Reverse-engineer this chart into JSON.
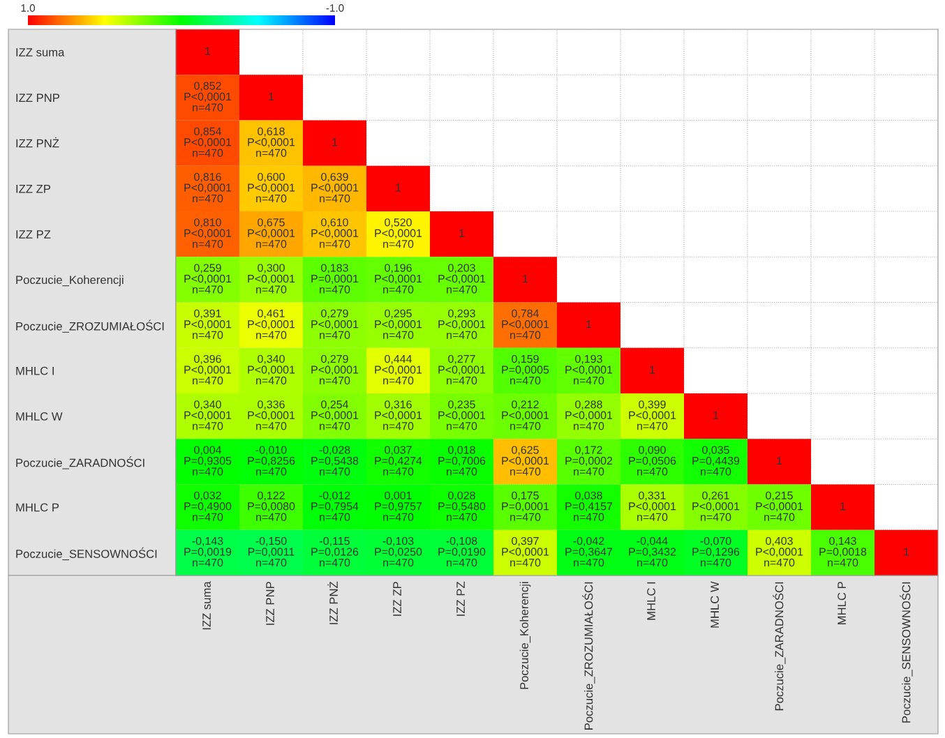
{
  "chart_data": {
    "type": "heatmap",
    "grid": true,
    "categories": [
      "IZZ suma",
      "IZZ PNP",
      "IZZ PNŻ",
      "IZZ ZP",
      "IZZ PZ",
      "Poczucie_Koherencji",
      "Poczucie_ZROZUMIAŁOŚCI",
      "MHLC I",
      "MHLC W",
      "Poczucie_ZARADNOŚCI",
      "MHLC P",
      "Poczucie_SENSOWNOŚCI"
    ],
    "y_categories": [
      "IZZ suma",
      "IZZ PNP",
      "IZZ PNŻ",
      "IZZ ZP",
      "IZZ PZ",
      "Poczucie_Koherencji",
      "Poczucie_ZROZUMIAŁOŚCI",
      "MHLC I",
      "MHLC W",
      "Poczucie_ZARADNOŚCI",
      "MHLC P",
      "Poczucie_SENSOWNOŚCI"
    ],
    "clim": [
      1.0,
      -1.0
    ],
    "cticks": [
      {
        "value": 1.0,
        "label": "1.0"
      },
      {
        "value": -1.0,
        "label": "-1.0"
      }
    ],
    "cells": [
      [
        1,
        null,
        null,
        null,
        null,
        null,
        null,
        null,
        null,
        null,
        null,
        null
      ],
      [
        0.852,
        1,
        null,
        null,
        null,
        null,
        null,
        null,
        null,
        null,
        null,
        null
      ],
      [
        0.854,
        0.618,
        1,
        null,
        null,
        null,
        null,
        null,
        null,
        null,
        null,
        null
      ],
      [
        0.816,
        0.6,
        0.639,
        1,
        null,
        null,
        null,
        null,
        null,
        null,
        null,
        null
      ],
      [
        0.81,
        0.675,
        0.61,
        0.52,
        1,
        null,
        null,
        null,
        null,
        null,
        null,
        null
      ],
      [
        0.259,
        0.3,
        0.183,
        0.196,
        0.203,
        1,
        null,
        null,
        null,
        null,
        null,
        null
      ],
      [
        0.391,
        0.461,
        0.279,
        0.295,
        0.293,
        0.784,
        1,
        null,
        null,
        null,
        null,
        null
      ],
      [
        0.396,
        0.34,
        0.279,
        0.444,
        0.277,
        0.159,
        0.193,
        1,
        null,
        null,
        null,
        null
      ],
      [
        0.34,
        0.336,
        0.254,
        0.316,
        0.235,
        0.212,
        0.288,
        0.399,
        1,
        null,
        null,
        null
      ],
      [
        0.004,
        -0.01,
        -0.028,
        0.037,
        0.018,
        0.625,
        0.172,
        0.09,
        0.035,
        1,
        null,
        null
      ],
      [
        0.032,
        0.122,
        -0.012,
        0.001,
        0.028,
        0.175,
        0.038,
        0.331,
        0.261,
        0.215,
        1,
        null
      ],
      [
        -0.143,
        -0.15,
        -0.115,
        -0.103,
        -0.108,
        0.397,
        -0.042,
        -0.044,
        -0.07,
        0.403,
        0.143,
        1
      ]
    ],
    "cell_labels": [
      [
        "1",
        null,
        null,
        null,
        null,
        null,
        null,
        null,
        null,
        null,
        null,
        null
      ],
      [
        "0,852\nP<0,0001\nn=470",
        "1",
        null,
        null,
        null,
        null,
        null,
        null,
        null,
        null,
        null,
        null
      ],
      [
        "0,854\nP<0,0001\nn=470",
        "0,618\nP<0,0001\nn=470",
        "1",
        null,
        null,
        null,
        null,
        null,
        null,
        null,
        null,
        null
      ],
      [
        "0,816\nP<0,0001\nn=470",
        "0,600\nP<0,0001\nn=470",
        "0,639\nP<0,0001\nn=470",
        "1",
        null,
        null,
        null,
        null,
        null,
        null,
        null,
        null
      ],
      [
        "0,810\nP<0,0001\nn=470",
        "0,675\nP<0,0001\nn=470",
        "0,610\nP<0,0001\nn=470",
        "0,520\nP<0,0001\nn=470",
        "1",
        null,
        null,
        null,
        null,
        null,
        null,
        null
      ],
      [
        "0,259\nP<0,0001\nn=470",
        "0,300\nP<0,0001\nn=470",
        "0,183\nP=0,0001\nn=470",
        "0,196\nP<0,0001\nn=470",
        "0,203\nP<0,0001\nn=470",
        "1",
        null,
        null,
        null,
        null,
        null,
        null
      ],
      [
        "0,391\nP<0,0001\nn=470",
        "0,461\nP<0,0001\nn=470",
        "0,279\nP<0,0001\nn=470",
        "0,295\nP<0,0001\nn=470",
        "0,293\nP<0,0001\nn=470",
        "0,784\nP<0,0001\nn=470",
        "1",
        null,
        null,
        null,
        null,
        null
      ],
      [
        "0,396\nP<0,0001\nn=470",
        "0,340\nP<0,0001\nn=470",
        "0,279\nP<0,0001\nn=470",
        "0,444\nP<0,0001\nn=470",
        "0,277\nP<0,0001\nn=470",
        "0,159\nP=0,0005\nn=470",
        "0,193\nP<0,0001\nn=470",
        "1",
        null,
        null,
        null,
        null
      ],
      [
        "0,340\nP<0,0001\nn=470",
        "0,336\nP<0,0001\nn=470",
        "0,254\nP<0,0001\nn=470",
        "0,316\nP<0,0001\nn=470",
        "0,235\nP<0,0001\nn=470",
        "0,212\nP<0,0001\nn=470",
        "0,288\nP<0,0001\nn=470",
        "0,399\nP<0,0001\nn=470",
        "1",
        null,
        null,
        null
      ],
      [
        "0,004\nP=0,9305\nn=470",
        "-0,010\nP=0,8256\nn=470",
        "-0,028\nP=0,5438\nn=470",
        "0,037\nP=0,4274\nn=470",
        "0,018\nP=0,7006\nn=470",
        "0,625\nP<0,0001\nn=470",
        "0,172\nP=0,0002\nn=470",
        "0,090\nP=0,0506\nn=470",
        "0,035\nP=0,4439\nn=470",
        "1",
        null,
        null
      ],
      [
        "0,032\nP=0,4900\nn=470",
        "0,122\nP=0,0080\nn=470",
        "-0,012\nP=0,7954\nn=470",
        "0,001\nP=0,9757\nn=470",
        "0,028\nP=0,5480\nn=470",
        "0,175\nP=0,0001\nn=470",
        "0,038\nP=0,4157\nn=470",
        "0,331\nP<0,0001\nn=470",
        "0,261\nP<0,0001\nn=470",
        "0,215\nP<0,0001\nn=470",
        "1",
        null
      ],
      [
        "-0,143\nP=0,0019\nn=470",
        "-0,150\nP=0,0011\nn=470",
        "-0,115\nP=0,0126\nn=470",
        "-0,103\nP=0,0250\nn=470",
        "-0,108\nP=0,0190\nn=470",
        "0,397\nP<0,0001\nn=470",
        "-0,042\nP=0,3647\nn=470",
        "-0,044\nP=0,3432\nn=470",
        "-0,070\nP=0,1296\nn=470",
        "0,403\nP<0,0001\nn=470",
        "0,143\nP=0,0018\nn=470",
        "1"
      ]
    ]
  }
}
